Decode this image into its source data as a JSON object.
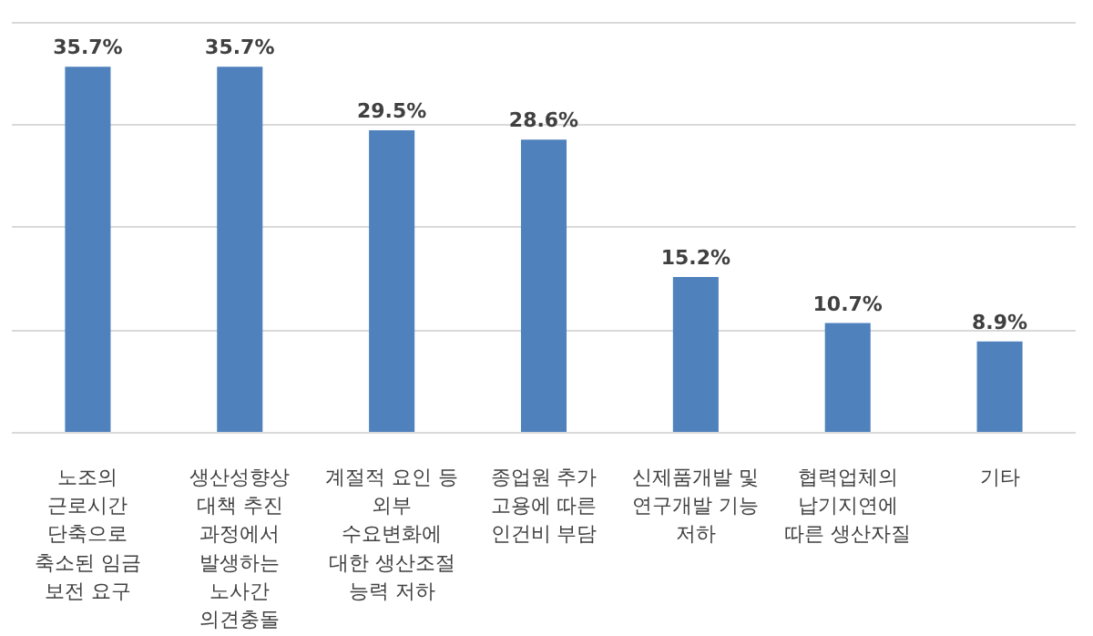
{
  "chart_data": {
    "type": "bar",
    "categories": [
      "노조의\n근로시간\n단축으로\n축소된 임금\n보전 요구",
      "생산성향상\n대책 추진\n과정에서\n발생하는\n노사간\n의견충돌",
      "계절적 요인 등\n외부\n수요변화에\n대한 생산조절\n능력 저하",
      "종업원 추가\n고용에 따른\n인건비 부담",
      "신제품개발 및\n연구개발 기능\n저하",
      "협력업체의\n납기지연에\n따른 생산자질",
      "기타"
    ],
    "values": [
      35.7,
      35.7,
      29.5,
      28.6,
      15.2,
      10.7,
      8.9
    ],
    "value_labels": [
      "35.7%",
      "35.7%",
      "29.5%",
      "28.6%",
      "15.2%",
      "10.7%",
      "8.9%"
    ],
    "color": "#4f81bd",
    "grid": "y",
    "tick_labels": "x"
  }
}
